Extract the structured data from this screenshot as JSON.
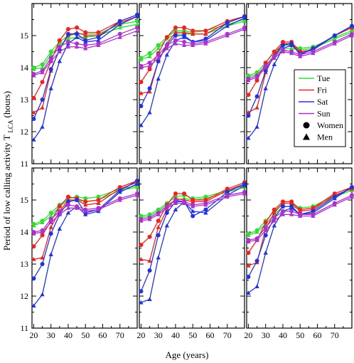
{
  "chart_data": {
    "type": "line",
    "xlabel": "Age (years)",
    "ylabel": "Period of low calling activity T",
    "ylabel_subscript": "LCA",
    "ylabel_unit": "(hours)",
    "xlim": [
      19,
      80
    ],
    "ylim": [
      11,
      16
    ],
    "xticks": [
      20,
      30,
      40,
      50,
      60,
      70
    ],
    "yticks": [
      11,
      12,
      13,
      14,
      15
    ],
    "x": [
      20,
      25,
      30,
      35,
      40,
      45,
      50,
      57.5,
      70,
      80
    ],
    "legend": {
      "placement": "right side of top-right panel",
      "entries": [
        {
          "label": "Tue",
          "color": "#33dd33",
          "kind": "line"
        },
        {
          "label": "Fri",
          "color": "#ee2222",
          "kind": "line"
        },
        {
          "label": "Sat",
          "color": "#2233dd",
          "kind": "line"
        },
        {
          "label": "Sun",
          "color": "#aa33cc",
          "kind": "line"
        },
        {
          "label": "Women",
          "kind": "circle"
        },
        {
          "label": "Men",
          "kind": "triangle"
        }
      ]
    },
    "panels": [
      {
        "series": [
          {
            "day": "Tue",
            "marker": "circle",
            "values": [
              14.0,
              14.1,
              14.5,
              14.8,
              15.0,
              15.05,
              15.05,
              15.05,
              15.35,
              15.45
            ]
          },
          {
            "day": "Tue",
            "marker": "triangle",
            "values": [
              13.95,
              14.0,
              14.4,
              14.7,
              14.9,
              14.95,
              14.95,
              15.0,
              15.25,
              15.35
            ]
          },
          {
            "day": "Fri",
            "marker": "circle",
            "values": [
              13.05,
              13.55,
              14.2,
              14.85,
              15.2,
              15.25,
              15.1,
              15.1,
              15.45,
              15.65
            ]
          },
          {
            "day": "Fri",
            "marker": "triangle",
            "values": [
              12.6,
              12.75,
              13.9,
              14.6,
              15.0,
              15.1,
              15.0,
              15.0,
              15.4,
              15.6
            ]
          },
          {
            "day": "Sat",
            "marker": "circle",
            "values": [
              12.4,
              13.0,
              13.95,
              14.55,
              15.05,
              15.05,
              14.85,
              14.95,
              15.45,
              15.65
            ]
          },
          {
            "day": "Sat",
            "marker": "triangle",
            "values": [
              11.75,
              12.15,
              13.35,
              14.2,
              14.75,
              14.95,
              14.8,
              14.85,
              15.35,
              15.6
            ]
          },
          {
            "day": "Sun",
            "marker": "circle",
            "values": [
              13.8,
              13.9,
              14.3,
              14.65,
              14.8,
              14.75,
              14.7,
              14.75,
              15.05,
              15.25
            ]
          },
          {
            "day": "Sun",
            "marker": "triangle",
            "values": [
              13.75,
              13.85,
              14.2,
              14.5,
              14.65,
              14.65,
              14.6,
              14.7,
              14.95,
              15.15
            ]
          }
        ]
      },
      {
        "series": [
          {
            "day": "Tue",
            "marker": "circle",
            "values": [
              14.3,
              14.45,
              14.7,
              14.95,
              15.15,
              15.15,
              15.1,
              15.15,
              15.35,
              15.5
            ]
          },
          {
            "day": "Tue",
            "marker": "triangle",
            "values": [
              14.25,
              14.35,
              14.6,
              14.9,
              15.05,
              15.05,
              15.05,
              15.05,
              15.3,
              15.45
            ]
          },
          {
            "day": "Fri",
            "marker": "circle",
            "values": [
              13.55,
              13.95,
              14.45,
              14.95,
              15.25,
              15.25,
              15.15,
              15.15,
              15.45,
              15.6
            ]
          },
          {
            "day": "Fri",
            "marker": "triangle",
            "values": [
              13.2,
              13.25,
              14.2,
              14.75,
              15.1,
              15.1,
              15.05,
              15.05,
              15.4,
              15.6
            ]
          },
          {
            "day": "Sat",
            "marker": "circle",
            "values": [
              12.8,
              13.35,
              14.2,
              14.7,
              15.0,
              15.0,
              14.8,
              14.9,
              15.4,
              15.6
            ]
          },
          {
            "day": "Sat",
            "marker": "triangle",
            "values": [
              12.2,
              12.6,
              13.65,
              14.4,
              14.85,
              14.95,
              14.8,
              14.85,
              15.3,
              15.55
            ]
          },
          {
            "day": "Sun",
            "marker": "circle",
            "values": [
              14.05,
              14.15,
              14.4,
              14.7,
              14.85,
              14.8,
              14.75,
              14.8,
              15.05,
              15.25
            ]
          },
          {
            "day": "Sun",
            "marker": "triangle",
            "values": [
              14.0,
              14.05,
              14.3,
              14.6,
              14.75,
              14.7,
              14.7,
              14.75,
              15.0,
              15.2
            ]
          }
        ]
      },
      {
        "series": [
          {
            "day": "Tue",
            "marker": "circle",
            "values": [
              13.75,
              13.85,
              14.15,
              14.5,
              14.7,
              14.7,
              14.6,
              14.65,
              14.95,
              15.15
            ]
          },
          {
            "day": "Tue",
            "marker": "triangle",
            "values": [
              13.7,
              13.8,
              14.05,
              14.4,
              14.6,
              14.6,
              14.55,
              14.6,
              14.9,
              15.1
            ]
          },
          {
            "day": "Fri",
            "marker": "circle",
            "values": [
              13.15,
              13.6,
              14.15,
              14.5,
              14.8,
              14.8,
              14.5,
              14.55,
              15.0,
              15.25
            ]
          },
          {
            "day": "Fri",
            "marker": "triangle",
            "values": [
              12.6,
              12.75,
              13.85,
              14.4,
              14.75,
              14.75,
              14.5,
              14.55,
              15.0,
              15.25
            ]
          },
          {
            "day": "Sat",
            "marker": "circle",
            "values": [
              12.5,
              13.1,
              13.9,
              14.35,
              14.7,
              14.75,
              14.4,
              14.6,
              15.0,
              15.3
            ]
          },
          {
            "day": "Sat",
            "marker": "triangle",
            "values": [
              11.8,
              12.15,
              13.35,
              14.1,
              14.6,
              14.7,
              14.45,
              14.55,
              15.0,
              15.3
            ]
          },
          {
            "day": "Sun",
            "marker": "circle",
            "values": [
              13.65,
              13.75,
              14.05,
              14.35,
              14.55,
              14.5,
              14.4,
              14.5,
              14.8,
              15.05
            ]
          },
          {
            "day": "Sun",
            "marker": "triangle",
            "values": [
              13.6,
              13.7,
              14.0,
              14.3,
              14.5,
              14.45,
              14.35,
              14.45,
              14.75,
              15.0
            ]
          }
        ]
      },
      {
        "series": [
          {
            "day": "Tue",
            "marker": "circle",
            "values": [
              14.25,
              14.35,
              14.6,
              14.85,
              15.05,
              15.1,
              15.05,
              15.1,
              15.35,
              15.45
            ]
          },
          {
            "day": "Tue",
            "marker": "triangle",
            "values": [
              14.2,
              14.3,
              14.5,
              14.8,
              15.0,
              15.0,
              14.95,
              15.0,
              15.3,
              15.4
            ]
          },
          {
            "day": "Fri",
            "marker": "circle",
            "values": [
              13.55,
              13.9,
              14.35,
              14.8,
              15.1,
              15.05,
              14.95,
              15.0,
              15.4,
              15.6
            ]
          },
          {
            "day": "Fri",
            "marker": "triangle",
            "values": [
              13.15,
              13.2,
              14.15,
              14.65,
              15.0,
              15.0,
              14.85,
              14.9,
              15.35,
              15.55
            ]
          },
          {
            "day": "Sat",
            "marker": "circle",
            "values": [
              12.55,
              13.0,
              13.95,
              14.55,
              14.95,
              15.0,
              14.6,
              14.7,
              15.3,
              15.6
            ]
          },
          {
            "day": "Sat",
            "marker": "triangle",
            "values": [
              11.7,
              12.05,
              13.3,
              14.1,
              14.6,
              14.8,
              14.55,
              14.65,
              15.25,
              15.5
            ]
          },
          {
            "day": "Sun",
            "marker": "circle",
            "values": [
              14.0,
              14.05,
              14.4,
              14.65,
              14.85,
              14.8,
              14.7,
              14.75,
              15.05,
              15.2
            ]
          },
          {
            "day": "Sun",
            "marker": "triangle",
            "values": [
              13.95,
              14.0,
              14.3,
              14.55,
              14.75,
              14.75,
              14.65,
              14.7,
              15.0,
              15.15
            ]
          }
        ]
      },
      {
        "series": [
          {
            "day": "Tue",
            "marker": "circle",
            "values": [
              14.5,
              14.55,
              14.7,
              14.9,
              15.1,
              15.15,
              15.05,
              15.1,
              15.3,
              15.45
            ]
          },
          {
            "day": "Tue",
            "marker": "triangle",
            "values": [
              14.45,
              14.5,
              14.65,
              14.85,
              15.0,
              15.05,
              15.0,
              15.05,
              15.25,
              15.4
            ]
          },
          {
            "day": "Fri",
            "marker": "circle",
            "values": [
              13.6,
              13.85,
              14.35,
              14.85,
              15.2,
              15.2,
              15.0,
              15.0,
              15.35,
              15.55
            ]
          },
          {
            "day": "Fri",
            "marker": "triangle",
            "values": [
              13.15,
              13.1,
              14.15,
              14.7,
              15.05,
              15.0,
              14.95,
              14.95,
              15.3,
              15.5
            ]
          },
          {
            "day": "Sat",
            "marker": "circle",
            "values": [
              12.15,
              12.8,
              13.9,
              14.6,
              14.95,
              14.95,
              14.5,
              14.7,
              15.25,
              15.5
            ]
          },
          {
            "day": "Sat",
            "marker": "triangle",
            "values": [
              11.8,
              11.9,
              13.2,
              14.2,
              14.7,
              14.95,
              14.65,
              14.6,
              15.15,
              15.45
            ]
          },
          {
            "day": "Sun",
            "marker": "circle",
            "values": [
              14.4,
              14.45,
              14.6,
              14.8,
              15.0,
              14.95,
              14.85,
              14.9,
              15.15,
              15.25
            ]
          },
          {
            "day": "Sun",
            "marker": "triangle",
            "values": [
              14.35,
              14.4,
              14.55,
              14.75,
              14.9,
              14.9,
              14.8,
              14.85,
              15.1,
              15.2
            ]
          }
        ]
      },
      {
        "series": [
          {
            "day": "Tue",
            "marker": "circle",
            "values": [
              13.95,
              14.05,
              14.35,
              14.65,
              14.9,
              14.9,
              14.75,
              14.8,
              15.15,
              15.35
            ]
          },
          {
            "day": "Tue",
            "marker": "triangle",
            "values": [
              13.9,
              14.0,
              14.25,
              14.55,
              14.8,
              14.8,
              14.7,
              14.75,
              15.1,
              15.3
            ]
          },
          {
            "day": "Fri",
            "marker": "circle",
            "values": [
              13.35,
              13.75,
              14.3,
              14.7,
              14.95,
              14.95,
              14.7,
              14.75,
              15.2,
              15.4
            ]
          },
          {
            "day": "Fri",
            "marker": "triangle",
            "values": [
              12.95,
              13.05,
              14.1,
              14.6,
              14.9,
              14.9,
              14.65,
              14.7,
              15.15,
              15.35
            ]
          },
          {
            "day": "Sat",
            "marker": "circle",
            "values": [
              12.6,
              13.1,
              13.9,
              14.45,
              14.8,
              14.8,
              14.55,
              14.65,
              15.1,
              15.4
            ]
          },
          {
            "day": "Sat",
            "marker": "triangle",
            "values": [
              12.1,
              12.3,
              13.35,
              14.2,
              14.65,
              14.75,
              14.55,
              14.6,
              15.05,
              15.4
            ]
          },
          {
            "day": "Sun",
            "marker": "circle",
            "values": [
              13.75,
              13.8,
              14.15,
              14.45,
              14.65,
              14.65,
              14.55,
              14.55,
              14.9,
              15.15
            ]
          },
          {
            "day": "Sun",
            "marker": "triangle",
            "values": [
              13.7,
              13.75,
              14.05,
              14.35,
              14.55,
              14.55,
              14.5,
              14.5,
              14.85,
              15.1
            ]
          }
        ]
      }
    ]
  }
}
